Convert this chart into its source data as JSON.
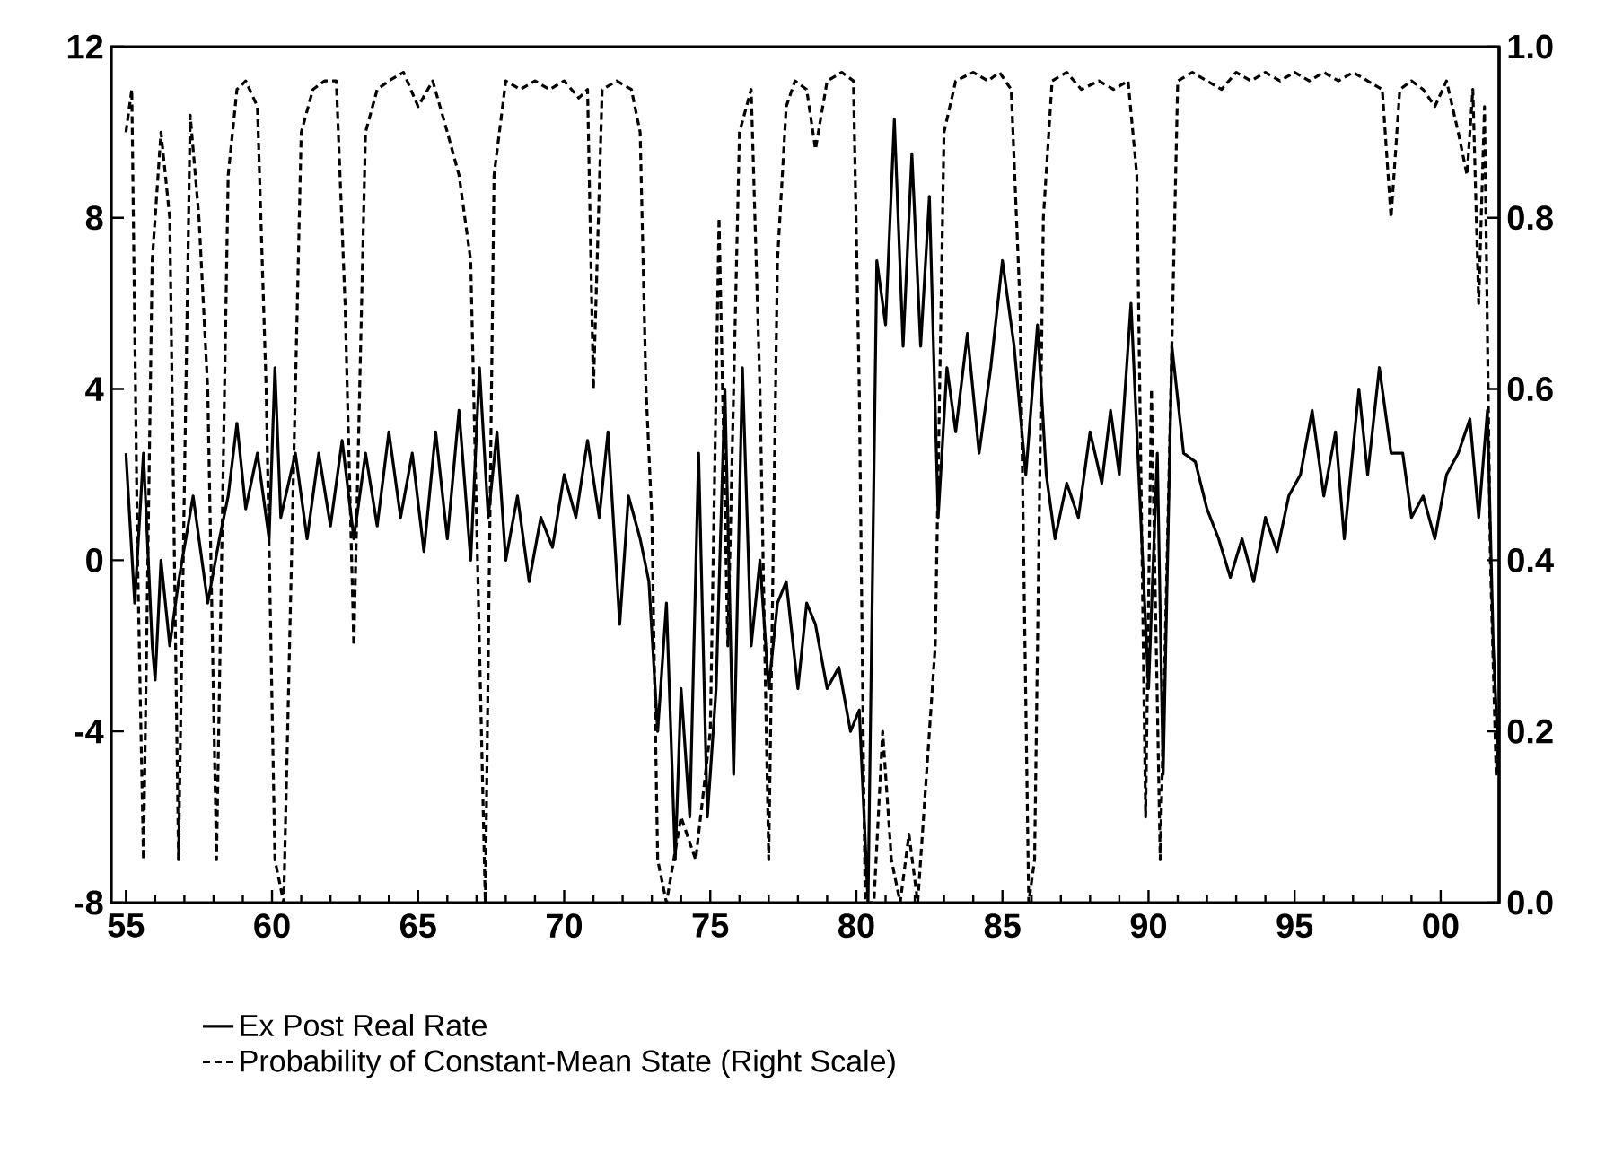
{
  "chart_data": {
    "type": "line",
    "xlim": [
      1954.5,
      2002
    ],
    "ylim": [
      -8,
      12
    ],
    "y2lim": [
      0,
      1
    ],
    "xticks": [
      {
        "value": 1955,
        "label": "55"
      },
      {
        "value": 1960,
        "label": "60"
      },
      {
        "value": 1965,
        "label": "65"
      },
      {
        "value": 1970,
        "label": "70"
      },
      {
        "value": 1975,
        "label": "75"
      },
      {
        "value": 1980,
        "label": "80"
      },
      {
        "value": 1985,
        "label": "85"
      },
      {
        "value": 1990,
        "label": "90"
      },
      {
        "value": 1995,
        "label": "95"
      },
      {
        "value": 2000,
        "label": "00"
      }
    ],
    "yticks": [
      -8,
      -4,
      0,
      4,
      8,
      12
    ],
    "y2ticks": [
      {
        "value": 0,
        "label": "0.0"
      },
      {
        "value": 0.2,
        "label": "0.2"
      },
      {
        "value": 0.4,
        "label": "0.4"
      },
      {
        "value": 0.6,
        "label": "0.6"
      },
      {
        "value": 0.8,
        "label": "0.8"
      },
      {
        "value": 1,
        "label": "1.0"
      }
    ],
    "legend": "bottom",
    "grid": false,
    "series": [
      {
        "name": "Ex Post Real Rate",
        "color": "#000000",
        "line_style": "solid",
        "x": [
          1955.0,
          1955.3,
          1955.6,
          1955.9,
          1956.0,
          1956.2,
          1956.5,
          1956.8,
          1957.3,
          1957.8,
          1958.2,
          1958.5,
          1958.8,
          1959.1,
          1959.5,
          1959.9,
          1960.1,
          1960.3,
          1960.8,
          1961.2,
          1961.6,
          1962.0,
          1962.4,
          1962.8,
          1963.2,
          1963.6,
          1964.0,
          1964.4,
          1964.8,
          1965.2,
          1965.6,
          1966.0,
          1966.4,
          1966.8,
          1967.1,
          1967.4,
          1967.7,
          1968.0,
          1968.4,
          1968.8,
          1969.2,
          1969.6,
          1970.0,
          1970.4,
          1970.8,
          1971.2,
          1971.5,
          1971.9,
          1972.2,
          1972.6,
          1972.9,
          1973.2,
          1973.5,
          1973.8,
          1974.0,
          1974.3,
          1974.6,
          1974.9,
          1975.2,
          1975.5,
          1975.8,
          1976.1,
          1976.4,
          1976.7,
          1977.0,
          1977.3,
          1977.6,
          1978.0,
          1978.3,
          1978.6,
          1979.0,
          1979.4,
          1979.8,
          1980.1,
          1980.4,
          1980.7,
          1981.0,
          1981.3,
          1981.6,
          1981.9,
          1982.2,
          1982.5,
          1982.8,
          1983.1,
          1983.4,
          1983.8,
          1984.2,
          1984.6,
          1985.0,
          1985.4,
          1985.8,
          1986.2,
          1986.5,
          1986.8,
          1987.2,
          1987.6,
          1988.0,
          1988.4,
          1988.7,
          1989.0,
          1989.4,
          1989.7,
          1990.0,
          1990.3,
          1990.5,
          1990.8,
          1991.2,
          1991.6,
          1992.0,
          1992.4,
          1992.8,
          1993.2,
          1993.6,
          1994.0,
          1994.4,
          1994.8,
          1995.2,
          1995.6,
          1996.0,
          1996.4,
          1996.7,
          1997.2,
          1997.5,
          1997.9,
          1998.3,
          1998.7,
          1999.0,
          1999.4,
          1999.8,
          2000.2,
          2000.6,
          2001.0,
          2001.3,
          2001.6,
          2001.8,
          2002.0
        ],
        "values": [
          2.5,
          -1,
          2.5,
          -2,
          -2.8,
          0,
          -2,
          -0.5,
          1.5,
          -1,
          0.5,
          1.5,
          3.2,
          1.2,
          2.5,
          0.5,
          4.5,
          1,
          2.5,
          0.5,
          2.5,
          0.8,
          2.8,
          0.5,
          2.5,
          0.8,
          3,
          1,
          2.5,
          0.2,
          3,
          0.5,
          3.5,
          0,
          4.5,
          1,
          3,
          0,
          1.5,
          -0.5,
          1,
          0.3,
          2,
          1,
          2.8,
          1,
          3,
          -1.5,
          1.5,
          0.5,
          -0.5,
          -4,
          -1,
          -7,
          -3,
          -6,
          2.5,
          -6,
          -3,
          4,
          -5,
          4.5,
          -2,
          0,
          -3,
          -1,
          -0.5,
          -3,
          -1,
          -1.5,
          -3,
          -2.5,
          -4,
          -3.5,
          -8,
          7,
          5.5,
          10.3,
          5,
          9.5,
          5,
          8.5,
          1,
          4.5,
          3,
          5.3,
          2.5,
          4.5,
          7,
          5,
          2,
          5.5,
          2,
          0.5,
          1.8,
          1,
          3,
          1.8,
          3.5,
          2,
          6,
          1.5,
          -3,
          2.5,
          -5,
          5,
          2.5,
          2.3,
          1.2,
          0.5,
          -0.4,
          0.5,
          -0.5,
          1,
          0.2,
          1.5,
          2,
          3.5,
          1.5,
          3,
          0.5,
          4,
          2,
          4.5,
          2.5,
          2.5,
          1,
          1.5,
          0.5,
          2,
          2.5,
          3.3,
          1,
          3.5,
          -2,
          -5
        ]
      },
      {
        "name": "Probability of Constant-Mean State (Right Scale)",
        "color": "#000000",
        "line_style": "dashed",
        "axis": "y2",
        "x": [
          1955.0,
          1955.2,
          1955.4,
          1955.6,
          1955.9,
          1956.2,
          1956.5,
          1956.8,
          1957.2,
          1957.5,
          1957.8,
          1958.1,
          1958.5,
          1958.8,
          1959.1,
          1959.5,
          1959.8,
          1960.1,
          1960.4,
          1960.7,
          1961.0,
          1961.4,
          1961.8,
          1962.2,
          1962.5,
          1962.8,
          1963.2,
          1963.6,
          1964.0,
          1964.5,
          1965.0,
          1965.5,
          1966.0,
          1966.4,
          1966.8,
          1967.1,
          1967.3,
          1967.6,
          1968.0,
          1968.5,
          1969.0,
          1969.5,
          1970.0,
          1970.5,
          1970.8,
          1971.0,
          1971.3,
          1971.8,
          1972.3,
          1972.6,
          1972.8,
          1973.0,
          1973.2,
          1973.5,
          1974.0,
          1974.5,
          1975.0,
          1975.3,
          1975.6,
          1976.0,
          1976.4,
          1976.7,
          1977.0,
          1977.3,
          1977.6,
          1977.9,
          1978.3,
          1978.6,
          1979.0,
          1979.5,
          1979.9,
          1980.1,
          1980.3,
          1980.6,
          1980.9,
          1981.2,
          1981.5,
          1981.8,
          1982.1,
          1982.4,
          1982.7,
          1983.0,
          1983.4,
          1984.0,
          1984.5,
          1984.9,
          1985.3,
          1985.6,
          1985.9,
          1986.1,
          1986.4,
          1986.7,
          1987.2,
          1987.7,
          1988.3,
          1988.8,
          1989.3,
          1989.6,
          1989.9,
          1990.1,
          1990.4,
          1990.7,
          1991.0,
          1991.5,
          1992.0,
          1992.5,
          1993.0,
          1993.5,
          1994.0,
          1994.5,
          1995.0,
          1995.5,
          1996.0,
          1996.5,
          1997.0,
          1997.5,
          1998.0,
          1998.3,
          1998.6,
          1999.0,
          1999.4,
          1999.8,
          2000.2,
          2000.6,
          2000.9,
          2001.1,
          2001.3,
          2001.5,
          2001.7,
          2001.9,
          2002.0
        ],
        "values": [
          0.9,
          0.95,
          0.4,
          0.05,
          0.75,
          0.9,
          0.8,
          0.05,
          0.92,
          0.8,
          0.6,
          0.05,
          0.85,
          0.95,
          0.96,
          0.93,
          0.6,
          0.05,
          0,
          0.45,
          0.9,
          0.95,
          0.96,
          0.96,
          0.7,
          0.3,
          0.9,
          0.95,
          0.96,
          0.97,
          0.93,
          0.96,
          0.9,
          0.85,
          0.75,
          0.3,
          0,
          0.85,
          0.96,
          0.95,
          0.96,
          0.95,
          0.96,
          0.94,
          0.95,
          0.6,
          0.95,
          0.96,
          0.95,
          0.9,
          0.6,
          0.45,
          0.05,
          0,
          0.1,
          0.05,
          0.2,
          0.8,
          0.3,
          0.9,
          0.95,
          0.6,
          0.05,
          0.75,
          0.93,
          0.96,
          0.95,
          0.88,
          0.96,
          0.97,
          0.96,
          0.6,
          0,
          0,
          0.2,
          0.05,
          0,
          0.08,
          0,
          0.15,
          0.3,
          0.9,
          0.96,
          0.97,
          0.96,
          0.97,
          0.95,
          0.7,
          0,
          0.05,
          0.8,
          0.96,
          0.97,
          0.95,
          0.96,
          0.95,
          0.96,
          0.85,
          0.1,
          0.6,
          0.05,
          0.5,
          0.96,
          0.97,
          0.96,
          0.95,
          0.97,
          0.96,
          0.97,
          0.96,
          0.97,
          0.96,
          0.97,
          0.96,
          0.97,
          0.96,
          0.95,
          0.8,
          0.95,
          0.96,
          0.95,
          0.93,
          0.96,
          0.9,
          0.85,
          0.95,
          0.7,
          0.93,
          0.4,
          0.15,
          0.2
        ]
      }
    ]
  }
}
